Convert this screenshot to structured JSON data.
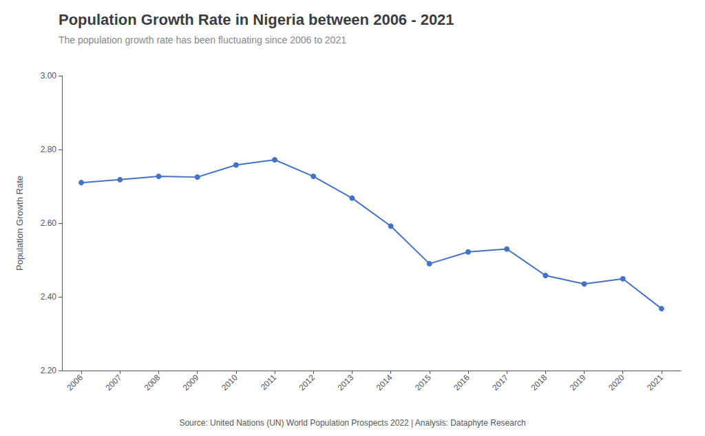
{
  "chart_data": {
    "type": "line",
    "title": "Population Growth Rate in Nigeria between 2006 - 2021",
    "subtitle": "The population growth rate has been fluctuating since 2006 to 2021",
    "ylabel": "Population Growth Rate",
    "annotations": [
      "Source: United Nations (UN) World Population Prospects 2022 | Analysis: Dataphyte Research"
    ],
    "x": [
      2006,
      2007,
      2008,
      2009,
      2010,
      2011,
      2012,
      2013,
      2014,
      2015,
      2016,
      2017,
      2018,
      2019,
      2020,
      2021
    ],
    "values": [
      2.71,
      2.718,
      2.727,
      2.725,
      2.758,
      2.772,
      2.727,
      2.668,
      2.592,
      2.49,
      2.522,
      2.53,
      2.458,
      2.435,
      2.449,
      2.368
    ],
    "color": "#4472C4",
    "marker": "circle",
    "xlim": [
      2005.5,
      2021.5
    ],
    "xticks": [
      2006,
      2007,
      2008,
      2009,
      2010,
      2011,
      2012,
      2013,
      2014,
      2015,
      2016,
      2017,
      2018,
      2019,
      2020,
      2021
    ],
    "ylim": [
      2.2,
      3.0
    ],
    "yticks": [
      {
        "value": 2.2,
        "label": "2.20"
      },
      {
        "value": 2.4,
        "label": "2.40"
      },
      {
        "value": 2.6,
        "label": "2.60"
      },
      {
        "value": 2.8,
        "label": "2.80"
      },
      {
        "value": 3.0,
        "label": "3.00"
      }
    ],
    "grid": false
  }
}
